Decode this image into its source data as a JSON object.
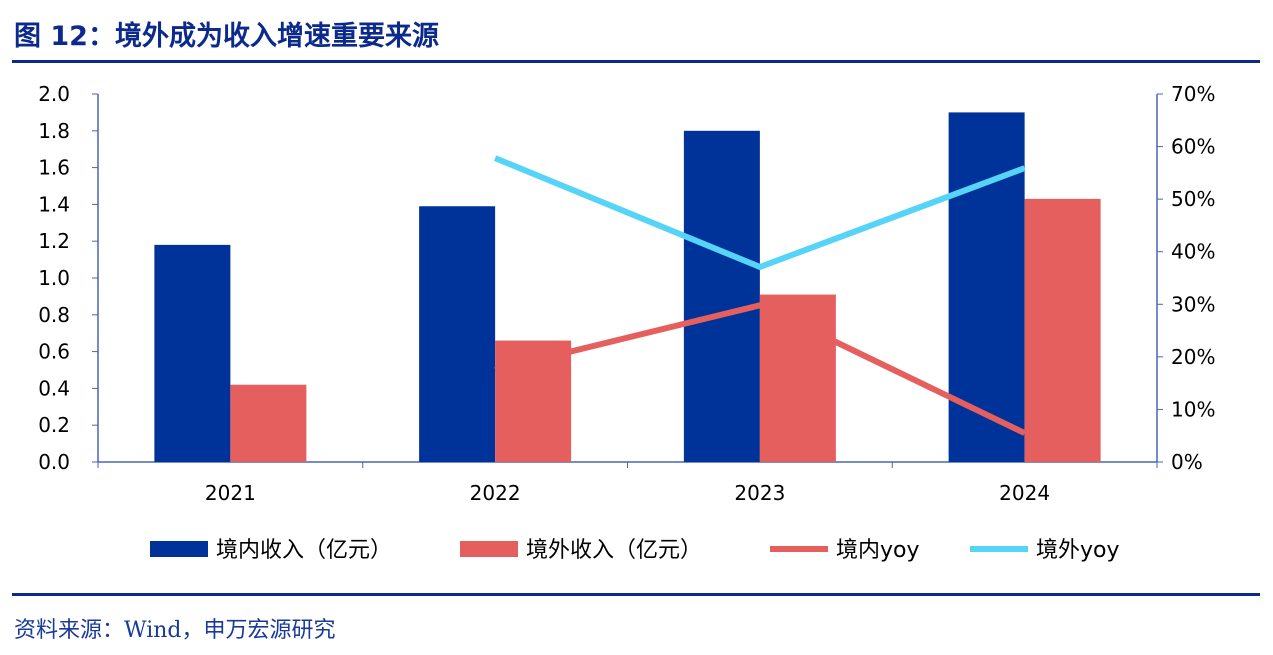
{
  "title": "图 12：境外成为收入增速重要来源",
  "source": "资料来源：Wind，申万宏源研究",
  "chart_data": {
    "type": "bar",
    "categories": [
      "2021",
      "2022",
      "2023",
      "2024"
    ],
    "series": [
      {
        "name": "境内收入（亿元）",
        "kind": "bar",
        "axis": "left",
        "color": "#003399",
        "values": [
          1.18,
          1.39,
          1.8,
          1.9
        ]
      },
      {
        "name": "境外收入（亿元）",
        "kind": "bar",
        "axis": "left",
        "color": "#E55F5F",
        "values": [
          0.42,
          0.66,
          0.91,
          1.43
        ]
      },
      {
        "name": "境内yoy",
        "kind": "line",
        "axis": "right",
        "color": "#E55F5F",
        "values": [
          null,
          17.5,
          29.8,
          5.5
        ]
      },
      {
        "name": "境外yoy",
        "kind": "line",
        "axis": "right",
        "color": "#55D4F7",
        "values": [
          null,
          57.8,
          37.1,
          55.9
        ]
      }
    ],
    "ylim": [
      0,
      2.0
    ],
    "yticks": [
      "0.0",
      "0.2",
      "0.4",
      "0.6",
      "0.8",
      "1.0",
      "1.2",
      "1.4",
      "1.6",
      "1.8",
      "2.0"
    ],
    "y2lim": [
      0,
      70
    ],
    "y2ticks": [
      "0%",
      "10%",
      "20%",
      "30%",
      "40%",
      "50%",
      "60%",
      "70%"
    ],
    "legend": "bottom"
  }
}
